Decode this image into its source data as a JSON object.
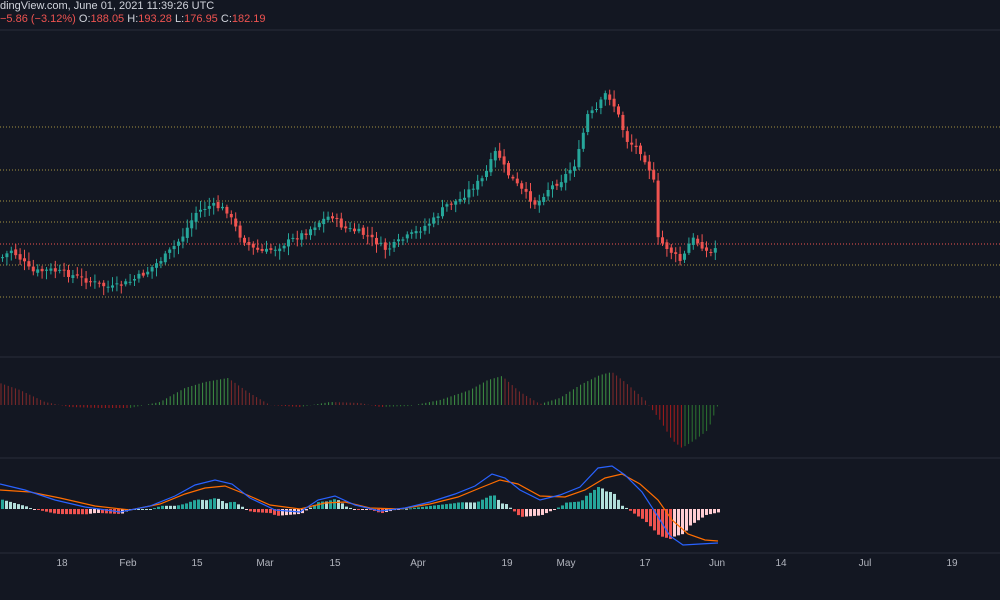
{
  "header": {
    "source_line": "dingView.com, June 01, 2021 11:39:26 UTC",
    "change": "−5.86 (−3.12%)",
    "o_label": "O:",
    "o_value": "188.05",
    "h_label": "H:",
    "h_value": "193.28",
    "l_label": "L:",
    "l_value": "176.95",
    "c_label": "C:",
    "c_value": "182.19"
  },
  "x_axis": {
    "labels": [
      "18",
      "Feb",
      "15",
      "Mar",
      "15",
      "Apr",
      "19",
      "May",
      "17",
      "Jun",
      "14",
      "Jul",
      "19"
    ]
  },
  "colors": {
    "background": "#131722",
    "up": "#26a69a",
    "down": "#ef5350",
    "level_line": "#c9b34a",
    "last_price_line": "#ef5350",
    "pane_separator": "#2a2e39",
    "macd_line": "#2962ff",
    "signal_line": "#ff6d00"
  },
  "chart_data": {
    "type": "candlestick",
    "x_ticks": [
      "18",
      "Feb",
      "15",
      "Mar",
      "15",
      "Apr",
      "19",
      "May",
      "17",
      "Jun",
      "14",
      "Jul",
      "19"
    ],
    "horizontal_levels_count": 7,
    "panes": [
      "price",
      "oscillator histogram",
      "MACD"
    ]
  }
}
